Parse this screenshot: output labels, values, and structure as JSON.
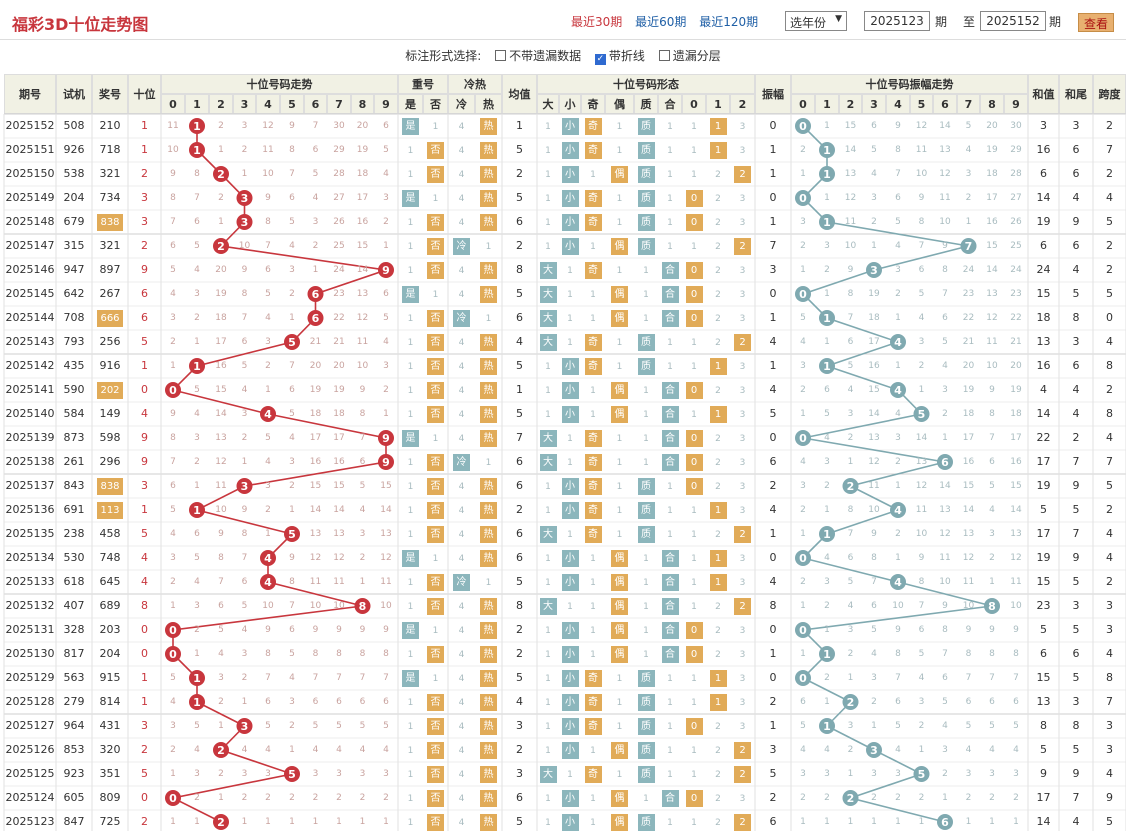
{
  "title": "福彩3D十位走势图",
  "nav": [
    {
      "label": "最近30期",
      "active": true
    },
    {
      "label": "最近60期",
      "active": false
    },
    {
      "label": "最近120期",
      "active": false
    }
  ],
  "year_select": "选年份",
  "from_label": "期",
  "to_label": "至",
  "end_label": "期",
  "from_value": "2025123",
  "to_value": "2025152",
  "query_button": "查看",
  "options": {
    "label": "标注形式选择:",
    "o1": "不带遗漏数据",
    "o2": "带折线",
    "o3": "遗漏分层",
    "o1_checked": false,
    "o2_checked": true,
    "o3_checked": false
  },
  "headers": {
    "issue": "期号",
    "test": "试机",
    "prize": "奖号",
    "tens": "十位",
    "trend": "十位号码走势",
    "repeat": "重号",
    "hotcold": "冷热",
    "avg": "均值",
    "form": "十位号码形态",
    "amp": "振幅",
    "amp_trend": "十位号码振幅走势",
    "sum": "和值",
    "sumtail": "和尾",
    "span": "跨度",
    "yes": "是",
    "no": "否",
    "cold": "冷",
    "hot": "热",
    "big": "大",
    "small": "小",
    "odd": "奇",
    "even": "偶",
    "prime": "质",
    "comp": "合",
    "r0": "0",
    "r1": "1",
    "r2": "2",
    "digits": [
      "0",
      "1",
      "2",
      "3",
      "4",
      "5",
      "6",
      "7",
      "8",
      "9"
    ]
  },
  "colors": {
    "red": "#c8363d",
    "teal": "#7fa9b0",
    "orange": "#e1ab58"
  },
  "rows": [
    {
      "issue": "2025152",
      "test": "508",
      "prize": "210",
      "tens": "1",
      "repeat": "是",
      "hot": "热",
      "avg": "1",
      "size": "小",
      "parity": "奇",
      "pc": "质",
      "mod": 1,
      "amp": "0",
      "sum": "3",
      "tail": "3",
      "span": "2"
    },
    {
      "issue": "2025151",
      "test": "926",
      "prize": "718",
      "tens": "1",
      "repeat": "否",
      "hot": "热",
      "avg": "5",
      "size": "小",
      "parity": "奇",
      "pc": "质",
      "mod": 1,
      "amp": "1",
      "sum": "16",
      "tail": "6",
      "span": "7"
    },
    {
      "issue": "2025150",
      "test": "538",
      "prize": "321",
      "tens": "2",
      "repeat": "否",
      "hot": "热",
      "avg": "2",
      "size": "小",
      "parity": "偶",
      "pc": "质",
      "mod": 2,
      "amp": "1",
      "sum": "6",
      "tail": "6",
      "span": "2"
    },
    {
      "issue": "2025149",
      "test": "204",
      "prize": "734",
      "tens": "3",
      "repeat": "是",
      "hot": "热",
      "avg": "5",
      "size": "小",
      "parity": "奇",
      "pc": "质",
      "mod": 0,
      "amp": "0",
      "sum": "14",
      "tail": "4",
      "span": "4"
    },
    {
      "issue": "2025148",
      "test": "679",
      "prize": "838",
      "tens": "3",
      "repeat": "否",
      "hot": "热",
      "avg": "6",
      "size": "小",
      "parity": "奇",
      "pc": "质",
      "mod": 0,
      "amp": "1",
      "sum": "19",
      "tail": "9",
      "span": "5"
    },
    {
      "issue": "2025147",
      "test": "315",
      "prize": "321",
      "tens": "2",
      "repeat": "否",
      "hot": "冷",
      "avg": "2",
      "size": "小",
      "parity": "偶",
      "pc": "质",
      "mod": 2,
      "amp": "7",
      "sum": "6",
      "tail": "6",
      "span": "2"
    },
    {
      "issue": "2025146",
      "test": "947",
      "prize": "897",
      "tens": "9",
      "repeat": "否",
      "hot": "热",
      "avg": "8",
      "size": "大",
      "parity": "奇",
      "pc": "合",
      "mod": 0,
      "amp": "3",
      "sum": "24",
      "tail": "4",
      "span": "2"
    },
    {
      "issue": "2025145",
      "test": "642",
      "prize": "267",
      "tens": "6",
      "repeat": "是",
      "hot": "热",
      "avg": "5",
      "size": "大",
      "parity": "偶",
      "pc": "合",
      "mod": 0,
      "amp": "0",
      "sum": "15",
      "tail": "5",
      "span": "5"
    },
    {
      "issue": "2025144",
      "test": "708",
      "prize": "666",
      "tens": "6",
      "repeat": "否",
      "hot": "冷",
      "avg": "6",
      "size": "大",
      "parity": "偶",
      "pc": "合",
      "mod": 0,
      "amp": "1",
      "sum": "18",
      "tail": "8",
      "span": "0"
    },
    {
      "issue": "2025143",
      "test": "793",
      "prize": "256",
      "tens": "5",
      "repeat": "否",
      "hot": "热",
      "avg": "4",
      "size": "大",
      "parity": "奇",
      "pc": "质",
      "mod": 2,
      "amp": "4",
      "sum": "13",
      "tail": "3",
      "span": "4"
    },
    {
      "issue": "2025142",
      "test": "435",
      "prize": "916",
      "tens": "1",
      "repeat": "否",
      "hot": "热",
      "avg": "5",
      "size": "小",
      "parity": "奇",
      "pc": "质",
      "mod": 1,
      "amp": "1",
      "sum": "16",
      "tail": "6",
      "span": "8"
    },
    {
      "issue": "2025141",
      "test": "590",
      "prize": "202",
      "tens": "0",
      "repeat": "否",
      "hot": "热",
      "avg": "1",
      "size": "小",
      "parity": "偶",
      "pc": "合",
      "mod": 0,
      "amp": "4",
      "sum": "4",
      "tail": "4",
      "span": "2"
    },
    {
      "issue": "2025140",
      "test": "584",
      "prize": "149",
      "tens": "4",
      "repeat": "否",
      "hot": "热",
      "avg": "5",
      "size": "小",
      "parity": "偶",
      "pc": "合",
      "mod": 1,
      "amp": "5",
      "sum": "14",
      "tail": "4",
      "span": "8"
    },
    {
      "issue": "2025139",
      "test": "873",
      "prize": "598",
      "tens": "9",
      "repeat": "是",
      "hot": "热",
      "avg": "7",
      "size": "大",
      "parity": "奇",
      "pc": "合",
      "mod": 0,
      "amp": "0",
      "sum": "22",
      "tail": "2",
      "span": "4"
    },
    {
      "issue": "2025138",
      "test": "261",
      "prize": "296",
      "tens": "9",
      "repeat": "否",
      "hot": "冷",
      "avg": "6",
      "size": "大",
      "parity": "奇",
      "pc": "合",
      "mod": 0,
      "amp": "6",
      "sum": "17",
      "tail": "7",
      "span": "7"
    },
    {
      "issue": "2025137",
      "test": "843",
      "prize": "838",
      "tens": "3",
      "repeat": "否",
      "hot": "热",
      "avg": "6",
      "size": "小",
      "parity": "奇",
      "pc": "质",
      "mod": 0,
      "amp": "2",
      "sum": "19",
      "tail": "9",
      "span": "5"
    },
    {
      "issue": "2025136",
      "test": "691",
      "prize": "113",
      "tens": "1",
      "repeat": "否",
      "hot": "热",
      "avg": "2",
      "size": "小",
      "parity": "奇",
      "pc": "质",
      "mod": 1,
      "amp": "4",
      "sum": "5",
      "tail": "5",
      "span": "2"
    },
    {
      "issue": "2025135",
      "test": "238",
      "prize": "458",
      "tens": "5",
      "repeat": "否",
      "hot": "热",
      "avg": "6",
      "size": "大",
      "parity": "奇",
      "pc": "质",
      "mod": 2,
      "amp": "1",
      "sum": "17",
      "tail": "7",
      "span": "4"
    },
    {
      "issue": "2025134",
      "test": "530",
      "prize": "748",
      "tens": "4",
      "repeat": "是",
      "hot": "热",
      "avg": "6",
      "size": "小",
      "parity": "偶",
      "pc": "合",
      "mod": 1,
      "amp": "0",
      "sum": "19",
      "tail": "9",
      "span": "4"
    },
    {
      "issue": "2025133",
      "test": "618",
      "prize": "645",
      "tens": "4",
      "repeat": "否",
      "hot": "冷",
      "avg": "5",
      "size": "小",
      "parity": "偶",
      "pc": "合",
      "mod": 1,
      "amp": "4",
      "sum": "15",
      "tail": "5",
      "span": "2"
    },
    {
      "issue": "2025132",
      "test": "407",
      "prize": "689",
      "tens": "8",
      "repeat": "否",
      "hot": "热",
      "avg": "8",
      "size": "大",
      "parity": "偶",
      "pc": "合",
      "mod": 2,
      "amp": "8",
      "sum": "23",
      "tail": "3",
      "span": "3"
    },
    {
      "issue": "2025131",
      "test": "328",
      "prize": "203",
      "tens": "0",
      "repeat": "是",
      "hot": "热",
      "avg": "2",
      "size": "小",
      "parity": "偶",
      "pc": "合",
      "mod": 0,
      "amp": "0",
      "sum": "5",
      "tail": "5",
      "span": "3"
    },
    {
      "issue": "2025130",
      "test": "817",
      "prize": "204",
      "tens": "0",
      "repeat": "否",
      "hot": "热",
      "avg": "2",
      "size": "小",
      "parity": "偶",
      "pc": "合",
      "mod": 0,
      "amp": "1",
      "sum": "6",
      "tail": "6",
      "span": "4"
    },
    {
      "issue": "2025129",
      "test": "563",
      "prize": "915",
      "tens": "1",
      "repeat": "是",
      "hot": "热",
      "avg": "5",
      "size": "小",
      "parity": "奇",
      "pc": "质",
      "mod": 1,
      "amp": "0",
      "sum": "15",
      "tail": "5",
      "span": "8"
    },
    {
      "issue": "2025128",
      "test": "279",
      "prize": "814",
      "tens": "1",
      "repeat": "否",
      "hot": "热",
      "avg": "4",
      "size": "小",
      "parity": "奇",
      "pc": "质",
      "mod": 1,
      "amp": "2",
      "sum": "13",
      "tail": "3",
      "span": "7"
    },
    {
      "issue": "2025127",
      "test": "964",
      "prize": "431",
      "tens": "3",
      "repeat": "否",
      "hot": "热",
      "avg": "3",
      "size": "小",
      "parity": "奇",
      "pc": "质",
      "mod": 0,
      "amp": "1",
      "sum": "8",
      "tail": "8",
      "span": "3"
    },
    {
      "issue": "2025126",
      "test": "853",
      "prize": "320",
      "tens": "2",
      "repeat": "否",
      "hot": "热",
      "avg": "2",
      "size": "小",
      "parity": "偶",
      "pc": "质",
      "mod": 2,
      "amp": "3",
      "sum": "5",
      "tail": "5",
      "span": "3"
    },
    {
      "issue": "2025125",
      "test": "923",
      "prize": "351",
      "tens": "5",
      "repeat": "否",
      "hot": "热",
      "avg": "3",
      "size": "大",
      "parity": "奇",
      "pc": "质",
      "mod": 2,
      "amp": "5",
      "sum": "9",
      "tail": "9",
      "span": "4"
    },
    {
      "issue": "2025124",
      "test": "605",
      "prize": "809",
      "tens": "0",
      "repeat": "否",
      "hot": "热",
      "avg": "6",
      "size": "小",
      "parity": "偶",
      "pc": "合",
      "mod": 0,
      "amp": "2",
      "sum": "17",
      "tail": "7",
      "span": "9"
    },
    {
      "issue": "2025123",
      "test": "847",
      "prize": "725",
      "tens": "2",
      "repeat": "否",
      "hot": "热",
      "avg": "5",
      "size": "小",
      "parity": "偶",
      "pc": "质",
      "mod": 2,
      "amp": "6",
      "sum": "14",
      "tail": "4",
      "span": "5"
    }
  ]
}
